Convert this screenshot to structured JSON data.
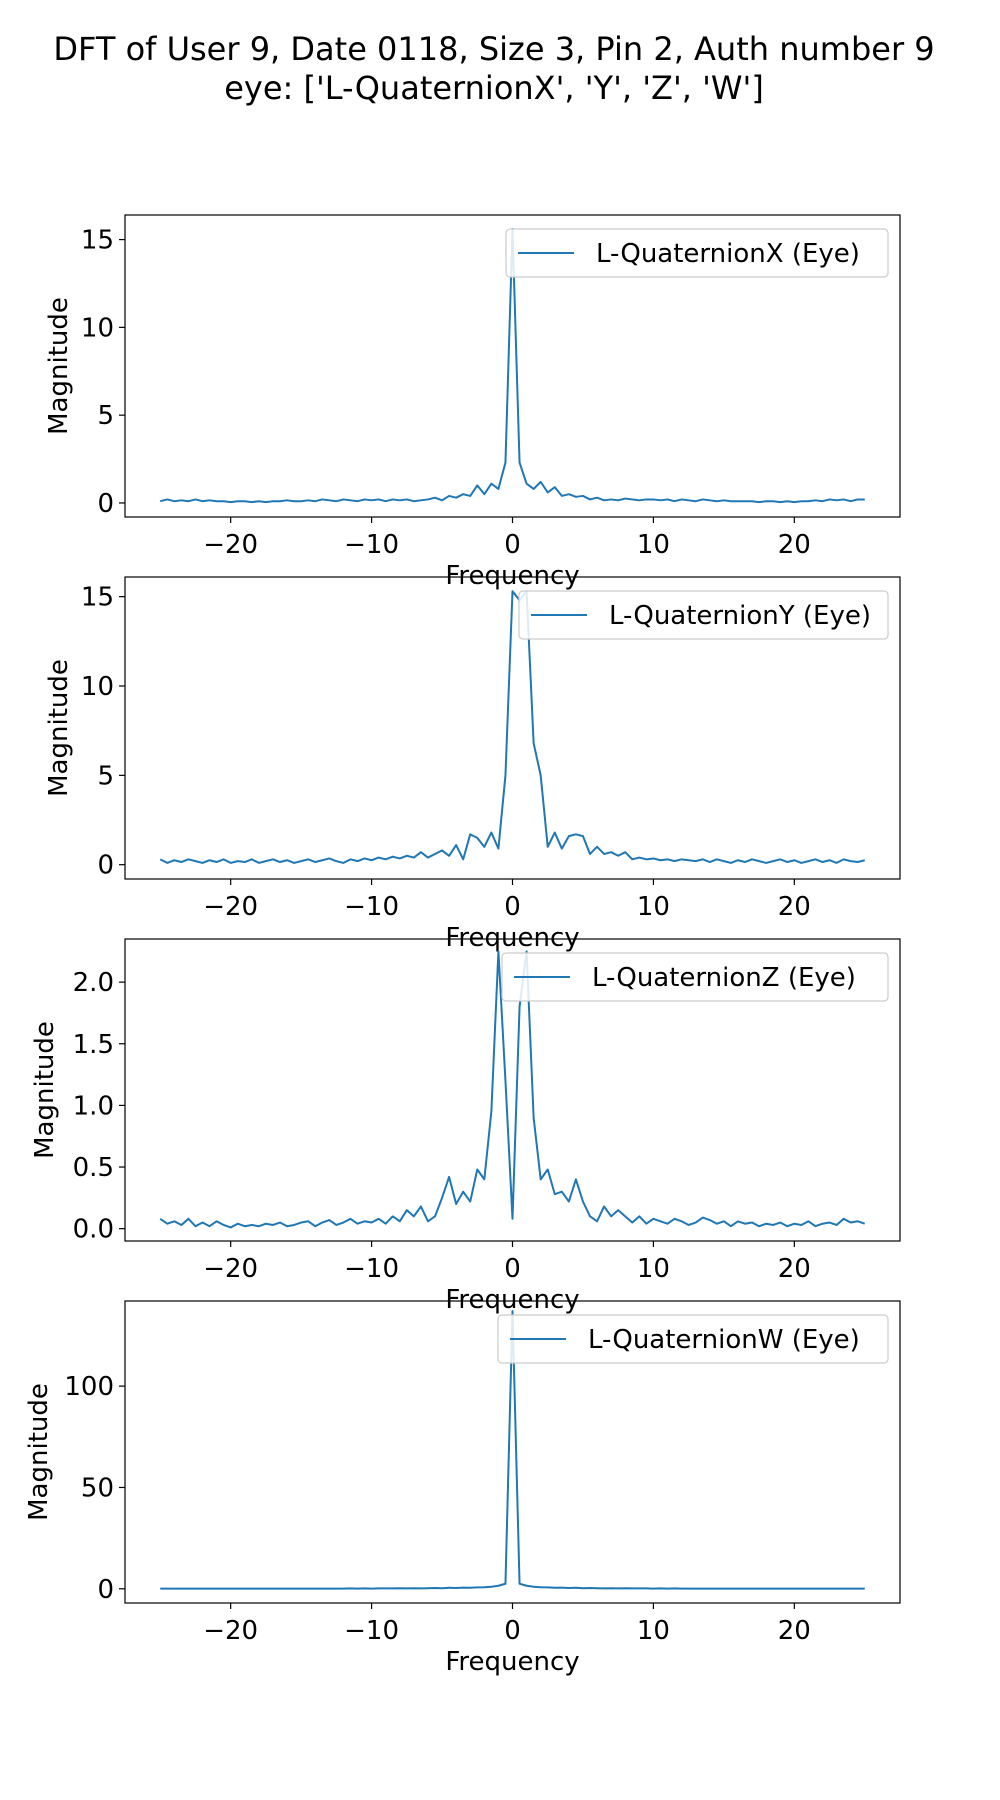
{
  "figure": {
    "title_line1": "DFT of User 9, Date 0118, Size 3, Pin 2, Auth number 9",
    "title_line2": "eye: ['L-QuaternionX', 'Y', 'Z', 'W']"
  },
  "colors": {
    "series": "#1f77b4",
    "axes": "#000000",
    "legend_border": "#cccccc"
  },
  "chart_data": [
    {
      "type": "line",
      "xlabel": "Frequency",
      "ylabel": "Magnitude",
      "xlim": [
        -27.5,
        27.5
      ],
      "ylim": [
        -0.8,
        16.4
      ],
      "xticks": [
        -20,
        -10,
        0,
        10,
        20
      ],
      "yticks": [
        0,
        5,
        10,
        15
      ],
      "legend_position": "upper right",
      "series": [
        {
          "name": "L-QuaternionX (Eye)",
          "x": [
            -25,
            -24.5,
            -24,
            -23.5,
            -23,
            -22.5,
            -22,
            -21.5,
            -21,
            -20.5,
            -20,
            -19.5,
            -19,
            -18.5,
            -18,
            -17.5,
            -17,
            -16.5,
            -16,
            -15.5,
            -15,
            -14.5,
            -14,
            -13.5,
            -13,
            -12.5,
            -12,
            -11.5,
            -11,
            -10.5,
            -10,
            -9.5,
            -9,
            -8.5,
            -8,
            -7.5,
            -7,
            -6.5,
            -6,
            -5.5,
            -5,
            -4.5,
            -4,
            -3.5,
            -3,
            -2.5,
            -2,
            -1.5,
            -1,
            -0.5,
            0,
            0.5,
            1,
            1.5,
            2,
            2.5,
            3,
            3.5,
            4,
            4.5,
            5,
            5.5,
            6,
            6.5,
            7,
            7.5,
            8,
            8.5,
            9,
            9.5,
            10,
            10.5,
            11,
            11.5,
            12,
            12.5,
            13,
            13.5,
            14,
            14.5,
            15,
            15.5,
            16,
            16.5,
            17,
            17.5,
            18,
            18.5,
            19,
            19.5,
            20,
            20.5,
            21,
            21.5,
            22,
            22.5,
            23,
            23.5,
            24,
            24.5,
            25
          ],
          "values": [
            0.1,
            0.2,
            0.1,
            0.15,
            0.1,
            0.2,
            0.1,
            0.15,
            0.1,
            0.1,
            0.05,
            0.1,
            0.1,
            0.05,
            0.1,
            0.05,
            0.1,
            0.1,
            0.15,
            0.1,
            0.1,
            0.15,
            0.1,
            0.2,
            0.15,
            0.1,
            0.2,
            0.15,
            0.1,
            0.2,
            0.15,
            0.2,
            0.1,
            0.2,
            0.15,
            0.2,
            0.1,
            0.15,
            0.2,
            0.3,
            0.15,
            0.4,
            0.3,
            0.5,
            0.4,
            1.0,
            0.5,
            1.1,
            0.8,
            2.3,
            15.6,
            2.3,
            1.1,
            0.8,
            1.2,
            0.6,
            0.9,
            0.4,
            0.5,
            0.35,
            0.4,
            0.2,
            0.3,
            0.15,
            0.2,
            0.15,
            0.25,
            0.2,
            0.15,
            0.2,
            0.2,
            0.15,
            0.2,
            0.1,
            0.2,
            0.15,
            0.1,
            0.2,
            0.15,
            0.1,
            0.15,
            0.1,
            0.1,
            0.1,
            0.1,
            0.05,
            0.1,
            0.1,
            0.05,
            0.1,
            0.05,
            0.1,
            0.1,
            0.15,
            0.1,
            0.2,
            0.15,
            0.2,
            0.1,
            0.2,
            0.2
          ]
        }
      ]
    },
    {
      "type": "line",
      "xlabel": "Frequency",
      "ylabel": "Magnitude",
      "xlim": [
        -27.5,
        27.5
      ],
      "ylim": [
        -0.8,
        16.1
      ],
      "xticks": [
        -20,
        -10,
        0,
        10,
        20
      ],
      "yticks": [
        0,
        5,
        10,
        15
      ],
      "legend_position": "upper right",
      "series": [
        {
          "name": "L-QuaternionY (Eye)",
          "x": [
            -25,
            -24.5,
            -24,
            -23.5,
            -23,
            -22.5,
            -22,
            -21.5,
            -21,
            -20.5,
            -20,
            -19.5,
            -19,
            -18.5,
            -18,
            -17.5,
            -17,
            -16.5,
            -16,
            -15.5,
            -15,
            -14.5,
            -14,
            -13.5,
            -13,
            -12.5,
            -12,
            -11.5,
            -11,
            -10.5,
            -10,
            -9.5,
            -9,
            -8.5,
            -8,
            -7.5,
            -7,
            -6.5,
            -6,
            -5.5,
            -5,
            -4.5,
            -4,
            -3.5,
            -3,
            -2.5,
            -2,
            -1.5,
            -1,
            -0.5,
            0,
            0.5,
            1,
            1.5,
            2,
            2.5,
            3,
            3.5,
            4,
            4.5,
            5,
            5.5,
            6,
            6.5,
            7,
            7.5,
            8,
            8.5,
            9,
            9.5,
            10,
            10.5,
            11,
            11.5,
            12,
            12.5,
            13,
            13.5,
            14,
            14.5,
            15,
            15.5,
            16,
            16.5,
            17,
            17.5,
            18,
            18.5,
            19,
            19.5,
            20,
            20.5,
            21,
            21.5,
            22,
            22.5,
            23,
            23.5,
            24,
            24.5,
            25
          ],
          "values": [
            0.3,
            0.1,
            0.25,
            0.15,
            0.3,
            0.2,
            0.1,
            0.25,
            0.15,
            0.3,
            0.1,
            0.2,
            0.15,
            0.3,
            0.1,
            0.2,
            0.3,
            0.15,
            0.25,
            0.1,
            0.2,
            0.3,
            0.15,
            0.25,
            0.35,
            0.2,
            0.1,
            0.3,
            0.2,
            0.35,
            0.25,
            0.4,
            0.3,
            0.45,
            0.35,
            0.5,
            0.4,
            0.7,
            0.4,
            0.6,
            0.8,
            0.5,
            1.1,
            0.3,
            1.7,
            1.5,
            1.0,
            1.8,
            0.9,
            5.0,
            15.3,
            14.8,
            15.3,
            6.8,
            5.0,
            1.0,
            1.8,
            0.9,
            1.6,
            1.7,
            1.6,
            0.6,
            1.0,
            0.6,
            0.7,
            0.5,
            0.7,
            0.3,
            0.4,
            0.3,
            0.35,
            0.25,
            0.3,
            0.2,
            0.3,
            0.25,
            0.2,
            0.3,
            0.15,
            0.3,
            0.2,
            0.1,
            0.25,
            0.15,
            0.3,
            0.2,
            0.1,
            0.2,
            0.3,
            0.15,
            0.25,
            0.1,
            0.2,
            0.3,
            0.15,
            0.25,
            0.1,
            0.3,
            0.2,
            0.15,
            0.25
          ]
        }
      ]
    },
    {
      "type": "line",
      "xlabel": "Frequency",
      "ylabel": "Magnitude",
      "xlim": [
        -27.5,
        27.5
      ],
      "ylim": [
        -0.1,
        2.35
      ],
      "xticks": [
        -20,
        -10,
        0,
        10,
        20
      ],
      "yticks": [
        0.0,
        0.5,
        1.0,
        1.5,
        2.0
      ],
      "legend_position": "upper right",
      "series": [
        {
          "name": "L-QuaternionZ (Eye)",
          "x": [
            -25,
            -24.5,
            -24,
            -23.5,
            -23,
            -22.5,
            -22,
            -21.5,
            -21,
            -20.5,
            -20,
            -19.5,
            -19,
            -18.5,
            -18,
            -17.5,
            -17,
            -16.5,
            -16,
            -15.5,
            -15,
            -14.5,
            -14,
            -13.5,
            -13,
            -12.5,
            -12,
            -11.5,
            -11,
            -10.5,
            -10,
            -9.5,
            -9,
            -8.5,
            -8,
            -7.5,
            -7,
            -6.5,
            -6,
            -5.5,
            -5,
            -4.5,
            -4,
            -3.5,
            -3,
            -2.5,
            -2,
            -1.5,
            -1,
            -0.5,
            0,
            0.5,
            1,
            1.5,
            2,
            2.5,
            3,
            3.5,
            4,
            4.5,
            5,
            5.5,
            6,
            6.5,
            7,
            7.5,
            8,
            8.5,
            9,
            9.5,
            10,
            10.5,
            11,
            11.5,
            12,
            12.5,
            13,
            13.5,
            14,
            14.5,
            15,
            15.5,
            16,
            16.5,
            17,
            17.5,
            18,
            18.5,
            19,
            19.5,
            20,
            20.5,
            21,
            21.5,
            22,
            22.5,
            23,
            23.5,
            24,
            24.5,
            25
          ],
          "values": [
            0.08,
            0.04,
            0.06,
            0.03,
            0.08,
            0.02,
            0.05,
            0.02,
            0.06,
            0.03,
            0.01,
            0.04,
            0.02,
            0.03,
            0.02,
            0.04,
            0.03,
            0.05,
            0.02,
            0.03,
            0.05,
            0.06,
            0.02,
            0.05,
            0.07,
            0.03,
            0.05,
            0.08,
            0.04,
            0.06,
            0.05,
            0.08,
            0.04,
            0.1,
            0.06,
            0.15,
            0.1,
            0.18,
            0.06,
            0.1,
            0.25,
            0.42,
            0.2,
            0.3,
            0.22,
            0.48,
            0.4,
            0.95,
            2.25,
            1.2,
            0.08,
            1.8,
            2.25,
            0.9,
            0.4,
            0.48,
            0.28,
            0.3,
            0.22,
            0.4,
            0.22,
            0.1,
            0.06,
            0.18,
            0.1,
            0.15,
            0.1,
            0.05,
            0.1,
            0.04,
            0.08,
            0.06,
            0.04,
            0.08,
            0.06,
            0.03,
            0.05,
            0.09,
            0.07,
            0.04,
            0.06,
            0.02,
            0.06,
            0.04,
            0.05,
            0.02,
            0.04,
            0.03,
            0.05,
            0.02,
            0.04,
            0.03,
            0.06,
            0.02,
            0.04,
            0.05,
            0.03,
            0.08,
            0.05,
            0.06,
            0.04
          ]
        }
      ]
    },
    {
      "type": "line",
      "xlabel": "Frequency",
      "ylabel": "Magnitude",
      "xlim": [
        -27.5,
        27.5
      ],
      "ylim": [
        -7,
        142
      ],
      "xticks": [
        -20,
        -10,
        0,
        10,
        20
      ],
      "yticks": [
        0,
        50,
        100
      ],
      "legend_position": "upper right",
      "series": [
        {
          "name": "L-QuaternionW (Eye)",
          "x": [
            -25,
            -24.5,
            -24,
            -23.5,
            -23,
            -22.5,
            -22,
            -21.5,
            -21,
            -20.5,
            -20,
            -19.5,
            -19,
            -18.5,
            -18,
            -17.5,
            -17,
            -16.5,
            -16,
            -15.5,
            -15,
            -14.5,
            -14,
            -13.5,
            -13,
            -12.5,
            -12,
            -11.5,
            -11,
            -10.5,
            -10,
            -9.5,
            -9,
            -8.5,
            -8,
            -7.5,
            -7,
            -6.5,
            -6,
            -5.5,
            -5,
            -4.5,
            -4,
            -3.5,
            -3,
            -2.5,
            -2,
            -1.5,
            -1,
            -0.5,
            0,
            0.5,
            1,
            1.5,
            2,
            2.5,
            3,
            3.5,
            4,
            4.5,
            5,
            5.5,
            6,
            6.5,
            7,
            7.5,
            8,
            8.5,
            9,
            9.5,
            10,
            10.5,
            11,
            11.5,
            12,
            12.5,
            13,
            13.5,
            14,
            14.5,
            15,
            15.5,
            16,
            16.5,
            17,
            17.5,
            18,
            18.5,
            19,
            19.5,
            20,
            20.5,
            21,
            21.5,
            22,
            22.5,
            23,
            23.5,
            24,
            24.5,
            25
          ],
          "values": [
            0.1,
            0.1,
            0.1,
            0.1,
            0.1,
            0.1,
            0.1,
            0.1,
            0.1,
            0.1,
            0.1,
            0.1,
            0.1,
            0.1,
            0.1,
            0.1,
            0.1,
            0.1,
            0.1,
            0.1,
            0.1,
            0.1,
            0.1,
            0.1,
            0.1,
            0.1,
            0.1,
            0.2,
            0.1,
            0.2,
            0.1,
            0.2,
            0.2,
            0.2,
            0.3,
            0.2,
            0.3,
            0.2,
            0.3,
            0.4,
            0.3,
            0.5,
            0.4,
            0.6,
            0.5,
            0.7,
            0.8,
            1.0,
            1.5,
            2.5,
            137.0,
            2.5,
            1.5,
            1.0,
            0.8,
            0.7,
            0.5,
            0.6,
            0.4,
            0.5,
            0.3,
            0.4,
            0.3,
            0.2,
            0.3,
            0.2,
            0.3,
            0.2,
            0.2,
            0.2,
            0.1,
            0.2,
            0.1,
            0.2,
            0.1,
            0.1,
            0.1,
            0.1,
            0.1,
            0.1,
            0.1,
            0.1,
            0.1,
            0.1,
            0.1,
            0.1,
            0.1,
            0.1,
            0.1,
            0.1,
            0.1,
            0.1,
            0.1,
            0.1,
            0.1,
            0.1,
            0.1,
            0.1,
            0.1,
            0.1,
            0.1
          ]
        }
      ]
    }
  ]
}
